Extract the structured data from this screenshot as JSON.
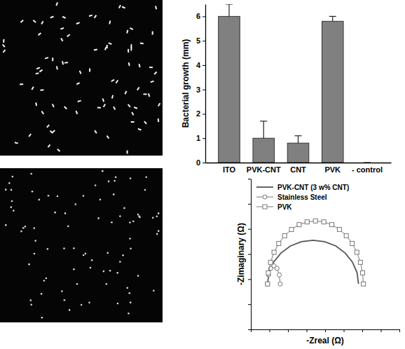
{
  "chart_data": [
    {
      "type": "bar",
      "categories": [
        "ITO",
        "PVK-CNT",
        "CNT",
        "PVK",
        "- control"
      ],
      "values": [
        6.0,
        1.0,
        0.8,
        5.8,
        0
      ],
      "errors": [
        0.5,
        0.7,
        0.3,
        0.2,
        0
      ],
      "y_label": "Bacterial growth (mm)",
      "ylim": [
        0,
        6.5
      ],
      "yticks": [
        0,
        1,
        2,
        3,
        4,
        5,
        6
      ],
      "color": "#808080"
    },
    {
      "type": "line",
      "x_label": "-Zreal (Ω)",
      "y_label": "-Zimaginary (Ω)",
      "xlim": [
        0,
        8
      ],
      "xticks": [
        0,
        1,
        2,
        3,
        4,
        5,
        6,
        7,
        8
      ],
      "ylim": [
        0,
        6
      ],
      "yticks": [
        0,
        1,
        2,
        3,
        4,
        5,
        6
      ],
      "tick_labels": false,
      "legend": "upper left",
      "series": [
        {
          "name": "PVK-CNT (3 w% CNT)",
          "color": "#555555",
          "line_style": "solid",
          "marker": "none",
          "x": [
            0.9,
            0.98,
            1.23,
            1.62,
            2.13,
            2.72,
            3.35,
            3.98,
            4.58,
            5.08,
            5.47,
            5.72,
            5.8
          ],
          "values": [
            1.81,
            2.26,
            2.68,
            3.04,
            3.32,
            3.49,
            3.55,
            3.49,
            3.32,
            3.04,
            2.68,
            2.26,
            1.81
          ]
        },
        {
          "name": "Stainless Steel",
          "color": "#777777",
          "line_style": "solid",
          "marker": "circle",
          "x": [
            0.9,
            0.95,
            1.07,
            1.24,
            1.41,
            1.53,
            1.58
          ],
          "values": [
            1.81,
            2.17,
            2.43,
            2.53,
            2.43,
            2.17,
            1.81
          ]
        },
        {
          "name": "PVK",
          "color": "#777777",
          "line_style": "solid",
          "marker": "square",
          "x": [
            0.9,
            0.94,
            1.06,
            1.25,
            1.5,
            1.82,
            2.19,
            2.6,
            3.03,
            3.48,
            3.93,
            4.36,
            4.77,
            5.14,
            5.46,
            5.71,
            5.9,
            6.02,
            6.06
          ],
          "values": [
            1.81,
            2.25,
            2.67,
            3.07,
            3.42,
            3.73,
            3.98,
            4.17,
            4.28,
            4.32,
            4.28,
            4.17,
            3.98,
            3.73,
            3.42,
            3.07,
            2.67,
            2.25,
            1.81
          ]
        }
      ]
    }
  ]
}
